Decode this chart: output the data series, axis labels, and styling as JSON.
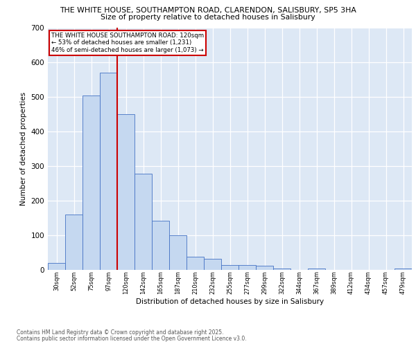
{
  "title_line1": "THE WHITE HOUSE, SOUTHAMPTON ROAD, CLARENDON, SALISBURY, SP5 3HA",
  "title_line2": "Size of property relative to detached houses in Salisbury",
  "xlabel": "Distribution of detached houses by size in Salisbury",
  "ylabel": "Number of detached properties",
  "bar_labels": [
    "30sqm",
    "52sqm",
    "75sqm",
    "97sqm",
    "120sqm",
    "142sqm",
    "165sqm",
    "187sqm",
    "210sqm",
    "232sqm",
    "255sqm",
    "277sqm",
    "299sqm",
    "322sqm",
    "344sqm",
    "367sqm",
    "389sqm",
    "412sqm",
    "434sqm",
    "457sqm",
    "479sqm"
  ],
  "bar_values": [
    20,
    160,
    505,
    570,
    450,
    278,
    143,
    100,
    38,
    33,
    15,
    15,
    12,
    5,
    0,
    5,
    0,
    0,
    0,
    0,
    5
  ],
  "bar_color": "#c5d8f0",
  "bar_edge_color": "#4472c4",
  "marker_index": 4,
  "marker_color": "#cc0000",
  "annotation_text": "THE WHITE HOUSE SOUTHAMPTON ROAD: 120sqm\n← 53% of detached houses are smaller (1,231)\n46% of semi-detached houses are larger (1,073) →",
  "annotation_box_color": "#ffffff",
  "annotation_border_color": "#cc0000",
  "ylim": [
    0,
    700
  ],
  "yticks": [
    0,
    100,
    200,
    300,
    400,
    500,
    600,
    700
  ],
  "plot_bg_color": "#dde8f5",
  "footer_line1": "Contains HM Land Registry data © Crown copyright and database right 2025.",
  "footer_line2": "Contains public sector information licensed under the Open Government Licence v3.0."
}
